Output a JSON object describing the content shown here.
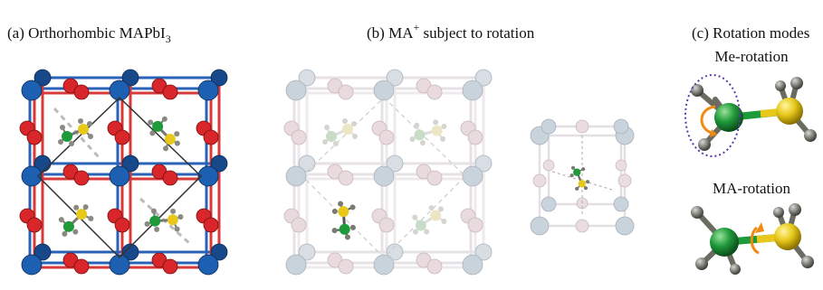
{
  "panels": [
    {
      "title": "(a) Orthorhombic MAPbI",
      "subscript": "3"
    },
    {
      "title_start": "(b) MA",
      "superscript": "+",
      "title_end": " subject to rotation"
    },
    {
      "title": "(c) Rotation modes",
      "modes": [
        "Me-rotation",
        "MA-rotation"
      ]
    }
  ]
}
